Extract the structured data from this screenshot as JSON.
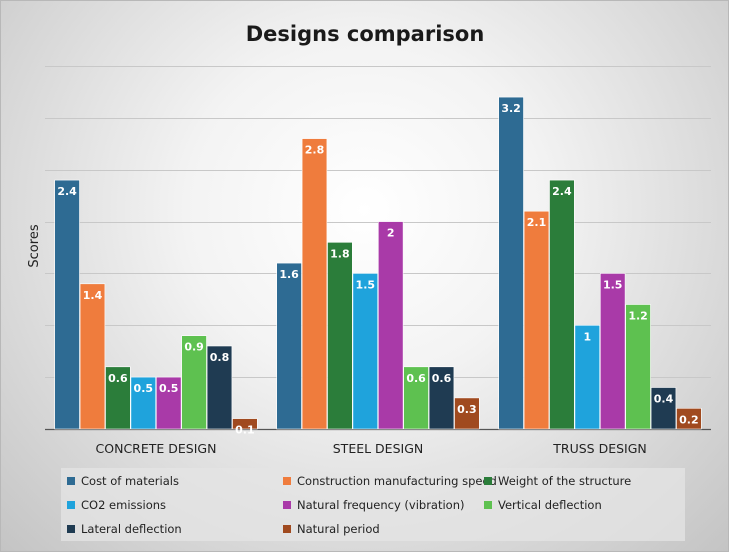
{
  "chart_data": {
    "type": "bar",
    "title": "Designs comparison",
    "ylabel": "Scores",
    "xlabel": "",
    "categories": [
      "CONCRETE DESIGN",
      "STEEL DESIGN",
      "TRUSS DESIGN"
    ],
    "ylim": [
      0,
      3.5
    ],
    "yticks": [
      0,
      0.5,
      1,
      1.5,
      2,
      2.5,
      3,
      3.5
    ],
    "ytick_labels_shown": false,
    "grid": true,
    "legend_position": "bottom",
    "series": [
      {
        "name": "Cost of materials",
        "color": "#2e6b93",
        "values": [
          2.4,
          1.6,
          3.2
        ],
        "labels": [
          "2.4",
          "1.6",
          "3.2"
        ]
      },
      {
        "name": "Construction manufacturing speed",
        "color": "#ef7c3d",
        "values": [
          1.4,
          2.8,
          2.1
        ],
        "labels": [
          "1.4",
          "2.8",
          "2.1"
        ]
      },
      {
        "name": "Weight of the structure",
        "color": "#2b7d3a",
        "values": [
          0.6,
          1.8,
          2.4
        ],
        "labels": [
          "0.6",
          "1.8",
          "2.4"
        ]
      },
      {
        "name": "CO2 emissions",
        "color": "#1fa3dc",
        "values": [
          0.5,
          1.5,
          1.0
        ],
        "labels": [
          "0.5",
          "1.5",
          "1"
        ]
      },
      {
        "name": "Natural frequency (vibration)",
        "color": "#a93aa8",
        "values": [
          0.5,
          2.0,
          1.5
        ],
        "labels": [
          "0.5",
          "2",
          "1.5"
        ]
      },
      {
        "name": "Vertical deflection",
        "color": "#5ec150",
        "values": [
          0.9,
          0.6,
          1.2
        ],
        "labels": [
          "0.9",
          "0.6",
          "1.2"
        ]
      },
      {
        "name": "Lateral deflection",
        "color": "#1f3b52",
        "values": [
          0.8,
          0.6,
          0.4
        ],
        "labels": [
          "0.8",
          "0.6",
          "0.4"
        ]
      },
      {
        "name": "Natural period",
        "color": "#a04a1f",
        "values": [
          0.1,
          0.3,
          0.2
        ],
        "labels": [
          "0.1",
          "0.3",
          "0.2"
        ]
      }
    ]
  }
}
